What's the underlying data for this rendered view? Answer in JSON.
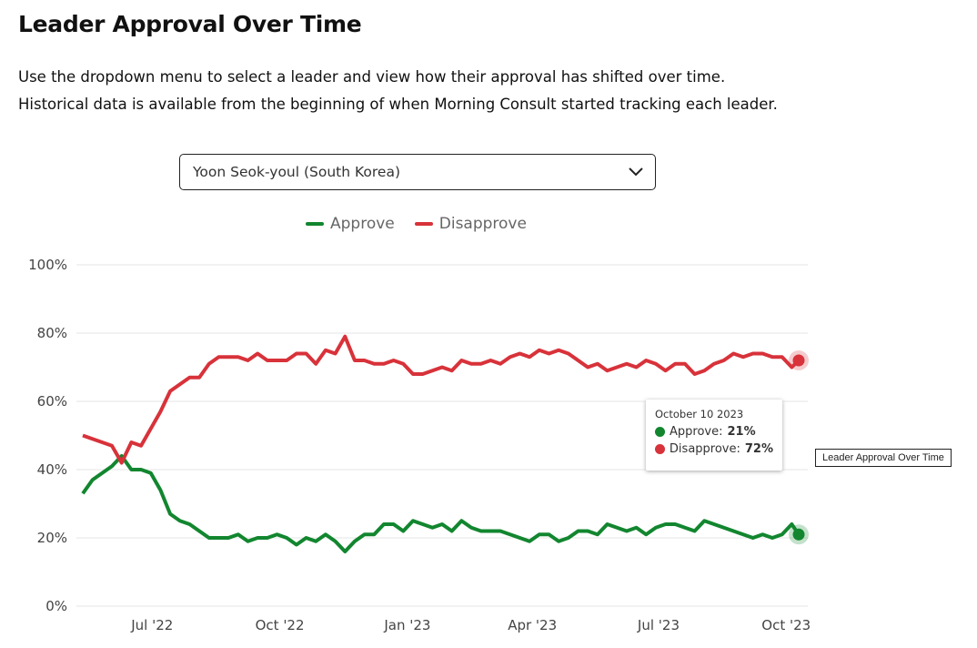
{
  "title": "Leader Approval Over Time",
  "description": "Use the dropdown menu to select a leader and view how their approval has shifted over time. Historical data is available from the beginning of when Morning Consult started tracking each leader.",
  "dropdown": {
    "selected": "Yoon Seok-youl (South Korea)",
    "icon": "chevron-down-icon"
  },
  "tooltip": {
    "date": "October 10 2023",
    "approve_label": "Approve:",
    "approve_value": "21%",
    "disapprove_label": "Disapprove:",
    "disapprove_value": "72%"
  },
  "caption": "Leader Approval Over Time",
  "colors": {
    "approve": "#12862f",
    "disapprove": "#d8323a",
    "grid": "#e6e6e6"
  },
  "chart_data": {
    "type": "line",
    "title": "Leader Approval Over Time",
    "legend": [
      "Approve",
      "Disapprove"
    ],
    "legend_position": "top-center",
    "x_start": "2022-05-12",
    "x_step_days": 7,
    "x_end": "2023-10-10",
    "x_total_days": 516,
    "x_ticks": [
      {
        "label": "Jul '22",
        "day": 50
      },
      {
        "label": "Oct '22",
        "day": 142
      },
      {
        "label": "Jan '23",
        "day": 234
      },
      {
        "label": "Apr '23",
        "day": 324
      },
      {
        "label": "Jul '23",
        "day": 415
      },
      {
        "label": "Oct '23",
        "day": 507
      }
    ],
    "y_ticks": [
      "0%",
      "20%",
      "40%",
      "60%",
      "80%",
      "100%"
    ],
    "ylim": [
      0,
      100
    ],
    "grid": true,
    "series": [
      {
        "name": "Approve",
        "values": [
          33,
          37,
          39,
          41,
          44,
          40,
          40,
          39,
          34,
          27,
          25,
          24,
          22,
          20,
          20,
          20,
          21,
          19,
          20,
          20,
          21,
          20,
          18,
          20,
          19,
          21,
          19,
          16,
          19,
          21,
          21,
          24,
          24,
          22,
          25,
          24,
          23,
          24,
          22,
          25,
          23,
          22,
          22,
          22,
          21,
          20,
          19,
          21,
          21,
          19,
          20,
          22,
          22,
          21,
          24,
          23,
          22,
          23,
          21,
          23,
          24,
          24,
          23,
          22,
          25,
          24,
          23,
          22,
          21,
          20,
          21,
          20,
          21,
          24,
          21
        ]
      },
      {
        "name": "Disapprove",
        "values": [
          50,
          49,
          48,
          47,
          42,
          48,
          47,
          52,
          57,
          63,
          65,
          67,
          67,
          71,
          73,
          73,
          73,
          72,
          74,
          72,
          72,
          72,
          74,
          74,
          71,
          75,
          74,
          79,
          72,
          72,
          71,
          71,
          72,
          71,
          68,
          68,
          69,
          70,
          69,
          72,
          71,
          71,
          72,
          71,
          73,
          74,
          73,
          75,
          74,
          75,
          74,
          72,
          70,
          71,
          69,
          70,
          71,
          70,
          72,
          71,
          69,
          71,
          71,
          68,
          69,
          71,
          72,
          74,
          73,
          74,
          74,
          73,
          73,
          70,
          72
        ]
      }
    ]
  }
}
